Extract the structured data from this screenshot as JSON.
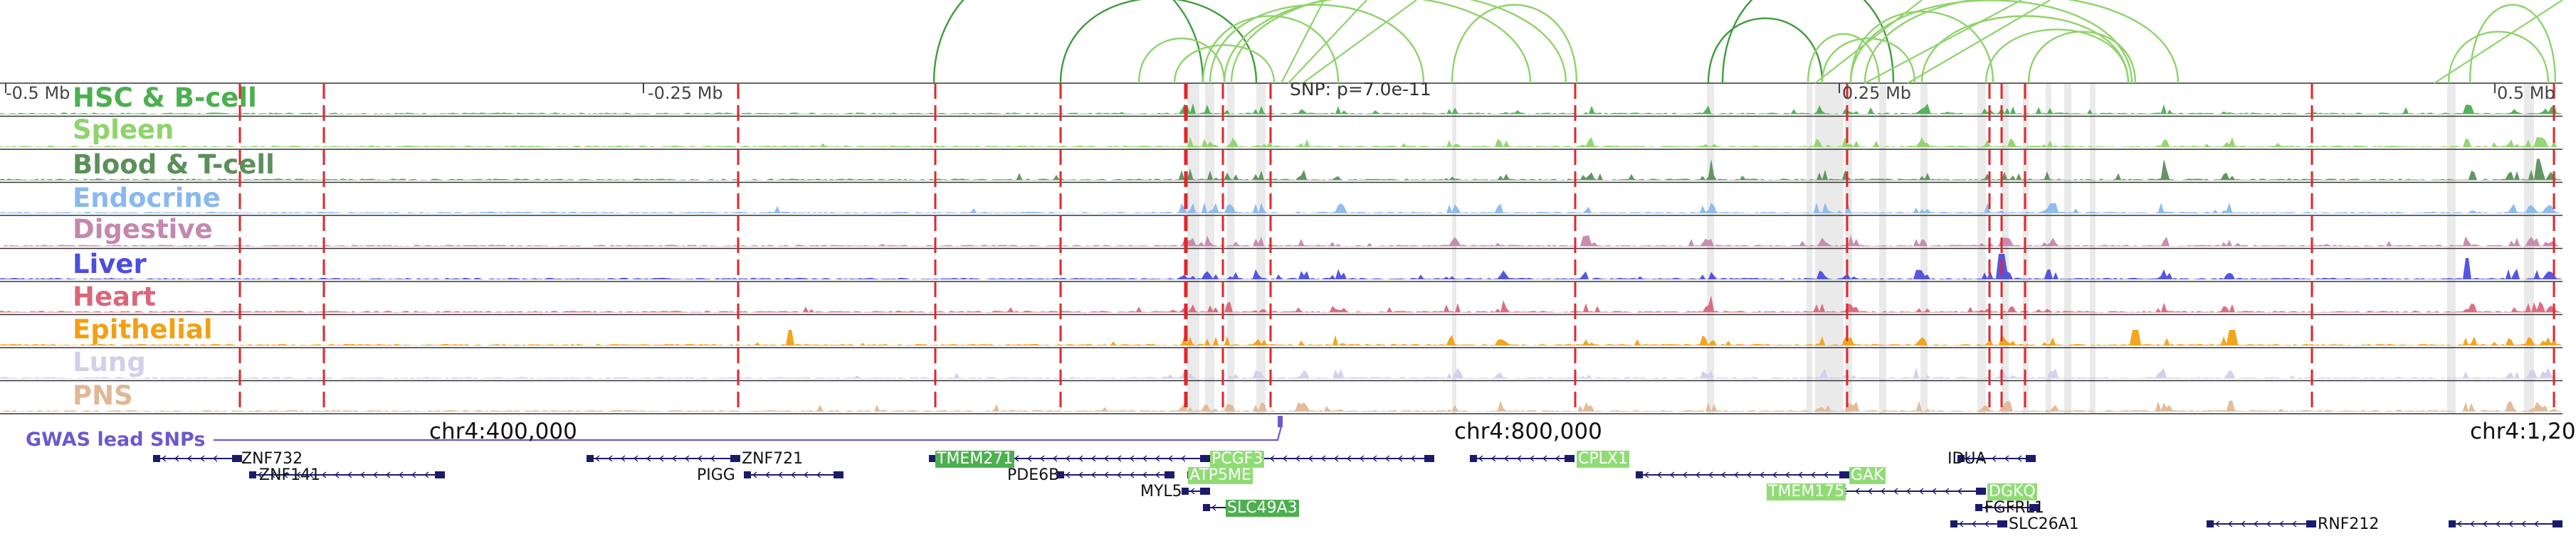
{
  "ruler": {
    "labels": [
      "-0.5 Mb",
      "-0.25 Mb",
      "0.25 Mb",
      "0.5 Mb"
    ],
    "snp_annotation": "SNP: p=7.0e-11"
  },
  "tracks": [
    {
      "label": "HSC & B-cell",
      "color": "#4caf50"
    },
    {
      "label": "Spleen",
      "color": "#8fd36b"
    },
    {
      "label": "Blood & T-cell",
      "color": "#5b8f5b"
    },
    {
      "label": "Endocrine",
      "color": "#8ab8ef"
    },
    {
      "label": "Digestive",
      "color": "#c488ae"
    },
    {
      "label": "Liver",
      "color": "#4d4de0"
    },
    {
      "label": "Heart",
      "color": "#d9677a"
    },
    {
      "label": "Epithelial",
      "color": "#f2a013"
    },
    {
      "label": "Lung",
      "color": "#d3cfe9"
    },
    {
      "label": "PNS",
      "color": "#e0b896"
    }
  ],
  "gwas": {
    "label": "GWAS lead SNPs",
    "color": "#6a5acd"
  },
  "coordinates": [
    "chr4:400,000",
    "chr4:800,000",
    "chr4:1,20"
  ],
  "genes": [
    {
      "name": "ZNF732",
      "highlight": "none"
    },
    {
      "name": "ZNF141",
      "highlight": "none"
    },
    {
      "name": "ZNF721",
      "highlight": "none"
    },
    {
      "name": "PIGG",
      "highlight": "none"
    },
    {
      "name": "TMEM271",
      "highlight": "dark"
    },
    {
      "name": "PDE6B",
      "highlight": "none"
    },
    {
      "name": "PCGF3",
      "highlight": "light"
    },
    {
      "name": "ATP5ME",
      "highlight": "light"
    },
    {
      "name": "MYL5",
      "highlight": "none"
    },
    {
      "name": "SLC49A3",
      "highlight": "dark"
    },
    {
      "name": "CPLX1",
      "highlight": "light"
    },
    {
      "name": "GAK",
      "highlight": "light"
    },
    {
      "name": "TMEM175",
      "highlight": "light"
    },
    {
      "name": "IDUA",
      "highlight": "none"
    },
    {
      "name": "DGKQ",
      "highlight": "light"
    },
    {
      "name": "FGFRL1",
      "highlight": "none"
    },
    {
      "name": "SLC26A1",
      "highlight": "none"
    },
    {
      "name": "RNF212",
      "highlight": "none"
    }
  ],
  "colors": {
    "loop_dark": "#3f9b3f",
    "loop_light": "#8fd36b",
    "boundary_line": "#e0262b",
    "highlight_band": "#d9d9d9",
    "gene_model": "#1b1b6e"
  }
}
